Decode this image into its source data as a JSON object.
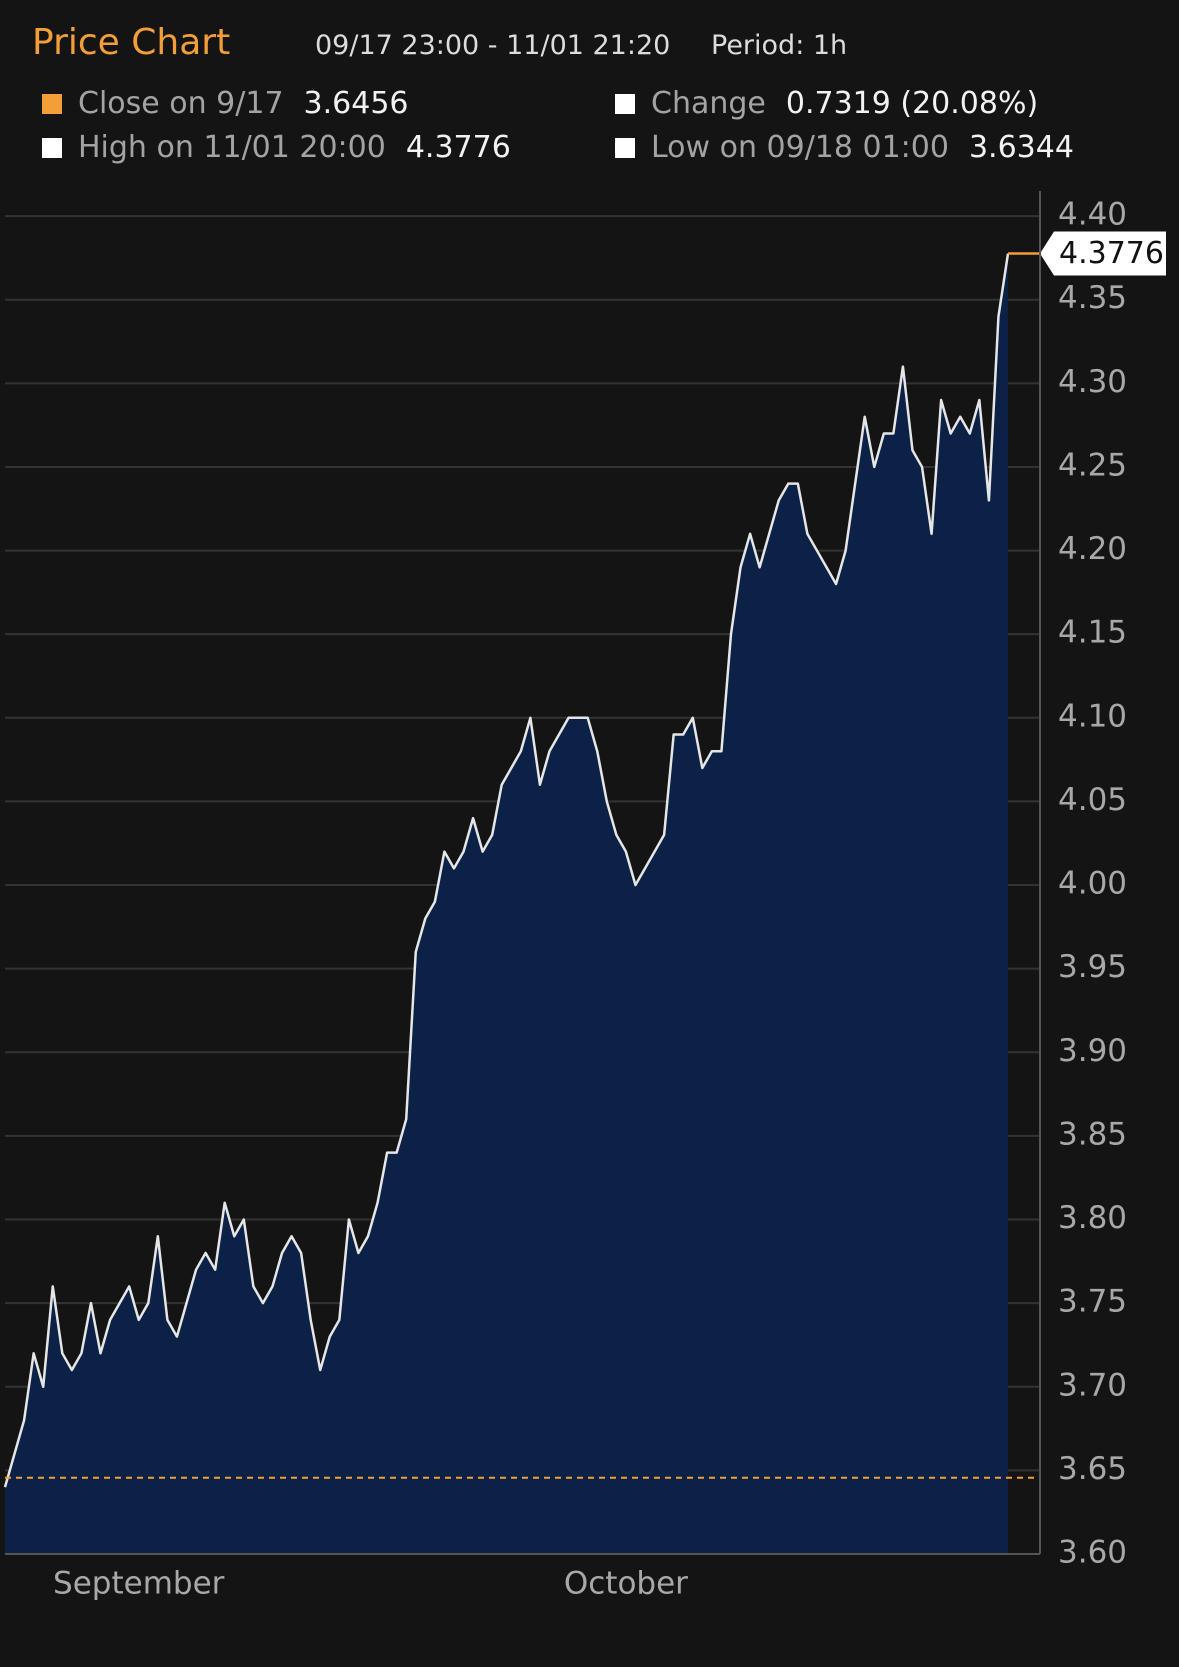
{
  "chart_data": {
    "type": "area",
    "title": "Price Chart",
    "date_range": "09/17 23:00 - 11/01 21:20",
    "period": "Period: 1h",
    "stats": [
      {
        "label": "Close on 9/17",
        "value": 3.6456,
        "color": "#f39f38"
      },
      {
        "label": "Change",
        "value": "0.7319 (20.08%)",
        "color": "#ffffff"
      },
      {
        "label": "High on 11/01 20:00",
        "value": 4.3776,
        "color": "#ffffff"
      },
      {
        "label": "Low on 09/18 01:00",
        "value": 3.6344,
        "color": "#ffffff"
      }
    ],
    "categories": [
      null,
      null,
      null,
      null,
      null,
      null,
      null,
      null,
      null,
      null,
      null,
      null,
      null,
      null,
      "September",
      null,
      null,
      null,
      null,
      null,
      null,
      null,
      null,
      null,
      null,
      null,
      null,
      null,
      null,
      null,
      null,
      null,
      null,
      null,
      null,
      null,
      null,
      null,
      null,
      null,
      null,
      null,
      null,
      null,
      null,
      null,
      null,
      null,
      null,
      null,
      null,
      null,
      null,
      null,
      null,
      null,
      null,
      null,
      null,
      null,
      null,
      null,
      null,
      null,
      null,
      "October",
      null,
      null,
      null,
      null,
      null,
      null,
      null,
      null,
      null,
      null,
      null,
      null,
      null,
      null,
      null,
      null,
      null,
      null,
      null,
      null,
      null,
      null,
      null,
      null,
      null,
      null,
      null,
      null,
      null,
      null,
      null,
      null,
      null,
      null,
      null,
      null,
      null,
      null,
      null,
      null
    ],
    "series": [
      {
        "color": "#e6e6e6",
        "fill": "#0b2145",
        "last_color": "#f39f38",
        "values": [
          3.64,
          3.66,
          3.68,
          3.72,
          3.7,
          3.76,
          3.72,
          3.71,
          3.72,
          3.75,
          3.72,
          3.74,
          3.75,
          3.76,
          3.74,
          3.75,
          3.79,
          3.74,
          3.73,
          3.75,
          3.77,
          3.78,
          3.77,
          3.81,
          3.79,
          3.8,
          3.76,
          3.75,
          3.76,
          3.78,
          3.79,
          3.78,
          3.74,
          3.71,
          3.73,
          3.74,
          3.8,
          3.78,
          3.79,
          3.81,
          3.84,
          3.84,
          3.86,
          3.96,
          3.98,
          3.99,
          4.02,
          4.01,
          4.02,
          4.04,
          4.02,
          4.03,
          4.06,
          4.07,
          4.08,
          4.1,
          4.06,
          4.08,
          4.09,
          4.1,
          4.1,
          4.1,
          4.08,
          4.05,
          4.03,
          4.02,
          4.0,
          4.01,
          4.02,
          4.03,
          4.09,
          4.09,
          4.1,
          4.07,
          4.08,
          4.08,
          4.15,
          4.19,
          4.21,
          4.19,
          4.21,
          4.23,
          4.24,
          4.24,
          4.21,
          4.2,
          4.19,
          4.18,
          4.2,
          4.24,
          4.28,
          4.25,
          4.27,
          4.27,
          4.31,
          4.26,
          4.25,
          4.21,
          4.29,
          4.27,
          4.28,
          4.27,
          4.29,
          4.23,
          4.34,
          4.3776
        ]
      }
    ],
    "ylim": [
      3.6,
      4.415
    ],
    "yticks": [
      {
        "value": 3.6,
        "label": "3.60"
      },
      3.65,
      {
        "value": 3.7,
        "label": "3.70"
      },
      3.75,
      {
        "value": 3.8,
        "label": "3.80"
      },
      3.85,
      {
        "value": 3.9,
        "label": "3.90"
      },
      3.95,
      {
        "value": 4.0,
        "label": "4.00"
      },
      4.05,
      {
        "value": 4.1,
        "label": "4.10"
      },
      4.15,
      {
        "value": 4.2,
        "label": "4.20"
      },
      4.25,
      {
        "value": 4.3,
        "label": "4.30"
      },
      4.35,
      {
        "value": 4.4,
        "label": "4.40"
      }
    ],
    "grid": true,
    "reference_color": "#f39f38"
  }
}
